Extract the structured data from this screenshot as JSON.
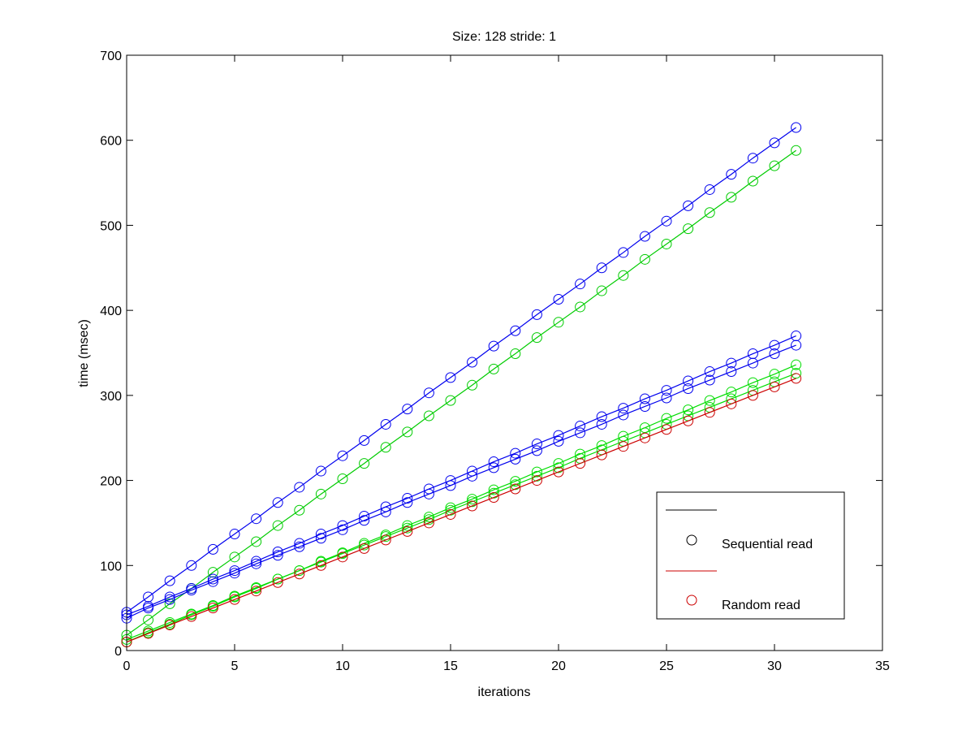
{
  "chart_data": {
    "type": "line",
    "title": "Size: 128 stride: 1",
    "xlabel": "iterations",
    "ylabel": "time (msec)",
    "xlim": [
      0,
      35
    ],
    "ylim": [
      0,
      700
    ],
    "xticks": [
      0,
      5,
      10,
      15,
      20,
      25,
      30,
      35
    ],
    "yticks": [
      0,
      100,
      200,
      300,
      400,
      500,
      600,
      700
    ],
    "grid": false,
    "legend": {
      "placement": "bottom-right",
      "entries": [
        {
          "label": "",
          "style": "line",
          "color": "#000000"
        },
        {
          "label": "Sequential read",
          "style": "marker",
          "color": "#000000"
        },
        {
          "label": "",
          "style": "line",
          "color": "#cc0000"
        },
        {
          "label": "Random read",
          "style": "marker",
          "color": "#cc0000"
        }
      ]
    },
    "x": [
      0,
      1,
      2,
      3,
      4,
      5,
      6,
      7,
      8,
      9,
      10,
      11,
      12,
      13,
      14,
      15,
      16,
      17,
      18,
      19,
      20,
      21,
      22,
      23,
      24,
      25,
      26,
      27,
      28,
      29,
      30,
      31
    ],
    "series": [
      {
        "name": "upper-blue",
        "color": "#0000ee",
        "values": [
          45,
          63,
          82,
          100,
          119,
          137,
          155,
          174,
          192,
          211,
          229,
          247,
          266,
          284,
          303,
          321,
          339,
          358,
          376,
          395,
          413,
          431,
          450,
          468,
          487,
          505,
          523,
          542,
          560,
          579,
          597,
          615
        ]
      },
      {
        "name": "upper-green",
        "color": "#00cc00",
        "values": [
          18,
          36,
          55,
          73,
          92,
          110,
          128,
          147,
          165,
          184,
          202,
          220,
          239,
          257,
          276,
          294,
          312,
          331,
          349,
          368,
          386,
          404,
          423,
          441,
          460,
          478,
          496,
          515,
          533,
          552,
          570,
          588
        ]
      },
      {
        "name": "lower-blue-a",
        "color": "#0000ee",
        "values": [
          38,
          50,
          60,
          71,
          81,
          91,
          102,
          112,
          122,
          132,
          142,
          153,
          163,
          174,
          184,
          194,
          205,
          215,
          225,
          235,
          246,
          256,
          266,
          277,
          287,
          297,
          308,
          318,
          328,
          338,
          349,
          359
        ]
      },
      {
        "name": "lower-blue-b",
        "color": "#0000ee",
        "values": [
          42,
          52,
          63,
          73,
          84,
          94,
          105,
          116,
          126,
          137,
          147,
          158,
          169,
          179,
          190,
          200,
          211,
          222,
          232,
          243,
          253,
          264,
          275,
          285,
          296,
          306,
          317,
          328,
          338,
          349,
          359,
          370
        ]
      },
      {
        "name": "lower-green-a",
        "color": "#00dd00",
        "values": [
          10,
          21,
          31,
          42,
          52,
          63,
          73,
          84,
          94,
          105,
          115,
          126,
          136,
          147,
          157,
          168,
          178,
          189,
          199,
          210,
          220,
          231,
          241,
          252,
          262,
          273,
          283,
          294,
          304,
          315,
          325,
          336
        ]
      },
      {
        "name": "lower-green-b",
        "color": "#00dd00",
        "values": [
          13,
          23,
          33,
          43,
          53,
          64,
          74,
          84,
          94,
          104,
          114,
          124,
          134,
          144,
          154,
          165,
          175,
          185,
          195,
          205,
          215,
          226,
          236,
          246,
          256,
          266,
          276,
          286,
          296,
          306,
          316,
          326
        ]
      },
      {
        "name": "random-read",
        "color": "#cc0000",
        "values": [
          10,
          20,
          30,
          40,
          50,
          60,
          70,
          80,
          90,
          100,
          110,
          120,
          130,
          140,
          150,
          160,
          170,
          180,
          190,
          200,
          210,
          220,
          230,
          240,
          250,
          260,
          270,
          280,
          290,
          300,
          310,
          320
        ]
      }
    ]
  }
}
